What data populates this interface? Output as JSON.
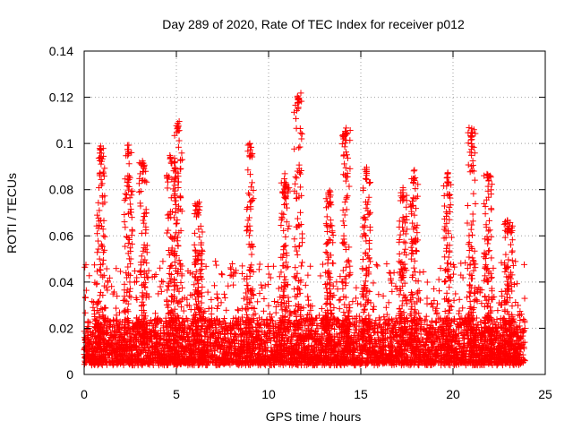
{
  "chart_data": {
    "type": "scatter",
    "title": "Day 289 of 2020, Rate Of TEC Index for receiver p012",
    "xlabel": "GPS time / hours",
    "ylabel": "ROTI / TECUs",
    "xlim": [
      0,
      25
    ],
    "ylim": [
      0,
      0.14
    ],
    "xticks": [
      0,
      5,
      10,
      15,
      20,
      25
    ],
    "yticks": [
      0,
      0.02,
      0.04,
      0.06,
      0.08,
      0.1,
      0.12,
      0.14
    ],
    "xtick_labels": [
      "0",
      "5",
      "10",
      "15",
      "20",
      "25"
    ],
    "ytick_labels": [
      "0",
      "0.02",
      "0.04",
      "0.06",
      "0.08",
      "0.1",
      "0.12",
      "0.14"
    ],
    "grid": true,
    "marker": "+",
    "color": "#ff0000",
    "x_range_of_data": [
      0,
      23.9
    ],
    "baseline_band": [
      0.005,
      0.02
    ],
    "peaks": [
      {
        "x": 0.9,
        "y": 0.099
      },
      {
        "x": 2.4,
        "y": 0.1
      },
      {
        "x": 3.2,
        "y": 0.093
      },
      {
        "x": 4.7,
        "y": 0.095
      },
      {
        "x": 5.1,
        "y": 0.11
      },
      {
        "x": 6.2,
        "y": 0.075
      },
      {
        "x": 9.0,
        "y": 0.1
      },
      {
        "x": 10.9,
        "y": 0.087
      },
      {
        "x": 11.6,
        "y": 0.123
      },
      {
        "x": 13.3,
        "y": 0.08
      },
      {
        "x": 14.2,
        "y": 0.107
      },
      {
        "x": 15.3,
        "y": 0.09
      },
      {
        "x": 17.3,
        "y": 0.081
      },
      {
        "x": 17.9,
        "y": 0.089
      },
      {
        "x": 19.7,
        "y": 0.088
      },
      {
        "x": 21.0,
        "y": 0.107
      },
      {
        "x": 21.9,
        "y": 0.087
      },
      {
        "x": 23.0,
        "y": 0.067
      }
    ]
  }
}
